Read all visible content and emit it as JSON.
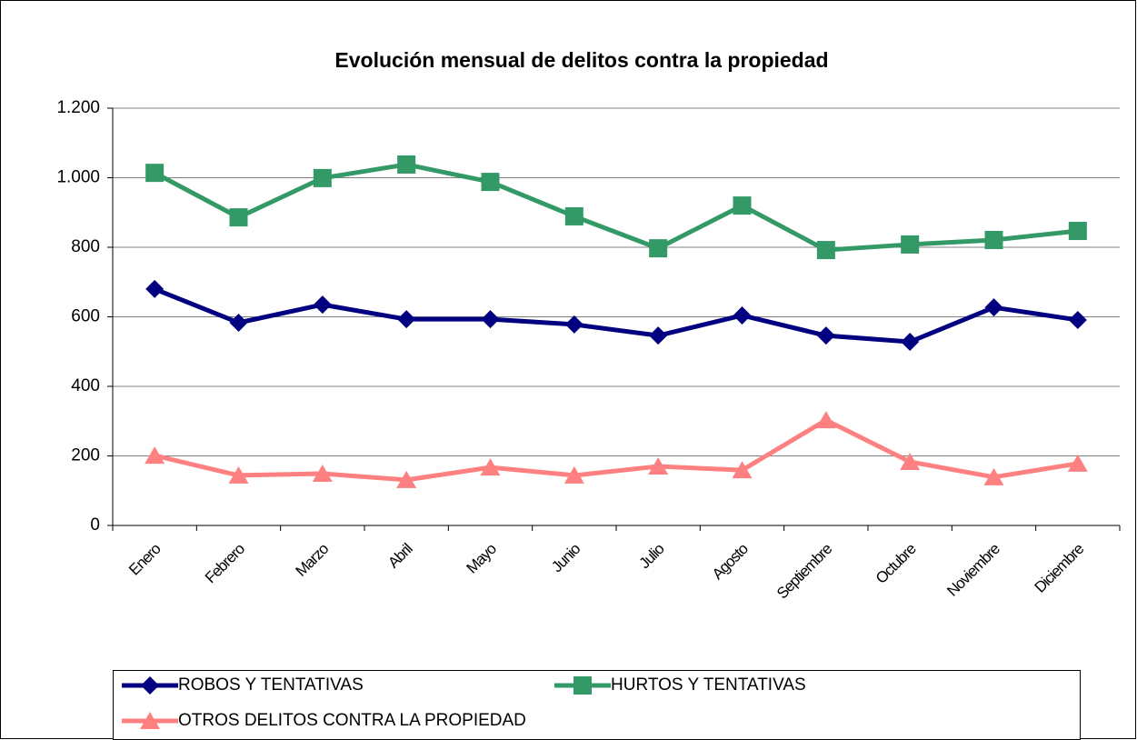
{
  "chart_data": {
    "type": "line",
    "title": "Evolución mensual de delitos contra la propiedad",
    "categories": [
      "Enero",
      "Febrero",
      "Marzo",
      "Abril",
      "Mayo",
      "Junio",
      "Julio",
      "Agosto",
      "Septiembre",
      "Octubre",
      "Noviembre",
      "Diciembre"
    ],
    "series": [
      {
        "name": "ROBOS Y TENTATIVAS",
        "color": "#000080",
        "marker": "diamond",
        "values": [
          680,
          583,
          635,
          593,
          593,
          578,
          546,
          604,
          546,
          528,
          627,
          591
        ]
      },
      {
        "name": "HURTOS Y TENTATIVAS",
        "color": "#339966",
        "marker": "square",
        "values": [
          1014,
          886,
          999,
          1038,
          988,
          889,
          797,
          920,
          792,
          808,
          821,
          847
        ]
      },
      {
        "name": "OTROS DELITOS CONTRA LA PROPIEDAD",
        "color": "#ff8080",
        "marker": "triangle",
        "values": [
          201,
          144,
          149,
          131,
          167,
          144,
          170,
          159,
          303,
          183,
          139,
          178
        ]
      }
    ],
    "ylim": [
      0,
      1200
    ],
    "yticks": [
      0,
      200,
      400,
      600,
      800,
      {
        "value": 1000,
        "label": "1.000"
      },
      {
        "value": 1200,
        "label": "1.200"
      }
    ],
    "grid": true,
    "legend": "bottom"
  }
}
